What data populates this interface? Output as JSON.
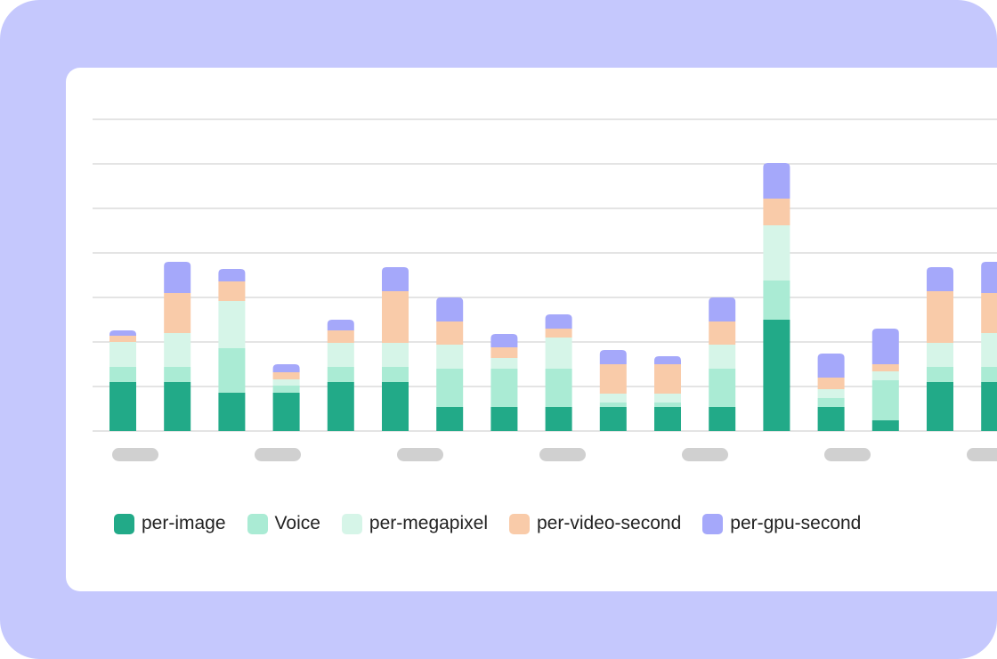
{
  "chart_data": {
    "type": "bar",
    "stacked": true,
    "categories": [
      "",
      "",
      "",
      "",
      "",
      "",
      "",
      "",
      "",
      "",
      "",
      "",
      "",
      "",
      "",
      "",
      ""
    ],
    "series": [
      {
        "name": "per-image",
        "color": "#22aa88",
        "values": [
          55,
          55,
          43,
          43,
          55,
          55,
          27,
          27,
          27,
          27,
          27,
          27,
          125,
          27,
          12,
          55,
          55
        ]
      },
      {
        "name": "Voice",
        "color": "#aaebd4",
        "values": [
          17,
          17,
          50,
          8,
          17,
          17,
          43,
          43,
          43,
          5,
          5,
          43,
          44,
          10,
          45,
          17,
          17
        ]
      },
      {
        "name": "per-megapixel",
        "color": "#d6f5e8",
        "values": [
          28,
          38,
          53,
          7,
          27,
          27,
          27,
          12,
          35,
          10,
          10,
          27,
          62,
          10,
          10,
          27,
          38
        ]
      },
      {
        "name": "per-video-second",
        "color": "#f9cba9",
        "values": [
          7,
          45,
          22,
          8,
          14,
          58,
          26,
          12,
          10,
          33,
          33,
          26,
          30,
          13,
          8,
          58,
          45
        ]
      },
      {
        "name": "per-gpu-second",
        "color": "#a5a8fa",
        "values": [
          6,
          35,
          14,
          9,
          12,
          27,
          27,
          15,
          16,
          16,
          9,
          27,
          40,
          27,
          40,
          27,
          35
        ]
      }
    ],
    "ylim": [
      0,
      350
    ],
    "grid": true,
    "legend": "bottom-left",
    "tick_placeholders": 7
  },
  "colors": {
    "background": "#c5c8fd",
    "card": "#ffffff",
    "gridline": "#c8c8c8",
    "placeholder": "#d0d0d0"
  }
}
